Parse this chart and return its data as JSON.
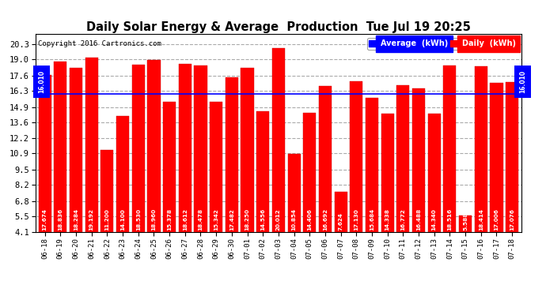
{
  "title": "Daily Solar Energy & Average  Production  Tue Jul 19 20:25",
  "copyright": "Copyright 2016 Cartronics.com",
  "average_value": 16.01,
  "bar_color": "#FF0000",
  "average_line_color": "#0000FF",
  "background_color": "#FFFFFF",
  "plot_bg_color": "#FFFFFF",
  "grid_color": "#C0C0C0",
  "categories": [
    "06-18",
    "06-19",
    "06-20",
    "06-21",
    "06-22",
    "06-23",
    "06-24",
    "06-25",
    "06-26",
    "06-27",
    "06-28",
    "06-29",
    "06-30",
    "07-01",
    "07-02",
    "07-03",
    "07-04",
    "07-05",
    "07-06",
    "07-07",
    "07-08",
    "07-09",
    "07-10",
    "07-11",
    "07-12",
    "07-13",
    "07-14",
    "07-15",
    "07-16",
    "07-17",
    "07-18"
  ],
  "values": [
    17.674,
    18.836,
    18.284,
    19.192,
    11.2,
    14.1,
    18.53,
    18.96,
    15.378,
    18.612,
    18.478,
    15.342,
    17.482,
    18.25,
    14.556,
    20.012,
    10.854,
    14.406,
    16.692,
    7.624,
    17.13,
    15.684,
    14.338,
    16.772,
    16.488,
    14.34,
    18.516,
    5.588,
    18.414,
    17.006,
    17.076
  ],
  "ylim_min": 4.1,
  "ylim_max": 21.2,
  "yticks": [
    4.1,
    5.5,
    6.8,
    8.2,
    9.5,
    10.9,
    12.2,
    13.6,
    14.9,
    16.3,
    17.6,
    19.0,
    20.3
  ],
  "legend_avg_label": "Average  (kWh)",
  "legend_daily_label": "Daily  (kWh)",
  "avg_label": "16.010"
}
